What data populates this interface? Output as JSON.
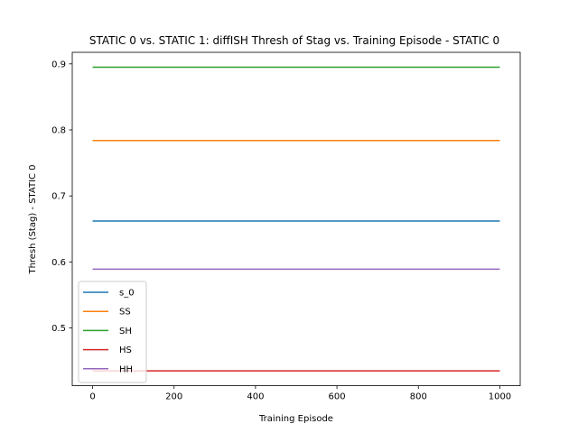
{
  "chart_data": {
    "type": "line",
    "title": "STATIC 0 vs. STATIC 1: diffISH Thresh of Stag vs. Training Episode - STATIC 0",
    "xlabel": "Training Episode",
    "ylabel": "Thresh (Stag) - STATIC 0",
    "xlim": [
      -50,
      1050
    ],
    "ylim": [
      0.4125,
      0.9175
    ],
    "xticks": [
      0,
      200,
      400,
      600,
      800,
      1000
    ],
    "yticks": [
      0.5,
      0.6,
      0.7,
      0.8,
      0.9
    ],
    "grid": false,
    "legend_position": "lower-left",
    "x": [
      0,
      1000
    ],
    "series": [
      {
        "name": "s_0",
        "color": "#1f77b4",
        "values": [
          0.662,
          0.662
        ]
      },
      {
        "name": "SS",
        "color": "#ff7f0e",
        "values": [
          0.784,
          0.784
        ]
      },
      {
        "name": "SH",
        "color": "#2ca02c",
        "values": [
          0.895,
          0.895
        ]
      },
      {
        "name": "HS",
        "color": "#d62728",
        "values": [
          0.435,
          0.435
        ]
      },
      {
        "name": "HH",
        "color": "#9467bd",
        "values": [
          0.589,
          0.589
        ]
      }
    ]
  }
}
